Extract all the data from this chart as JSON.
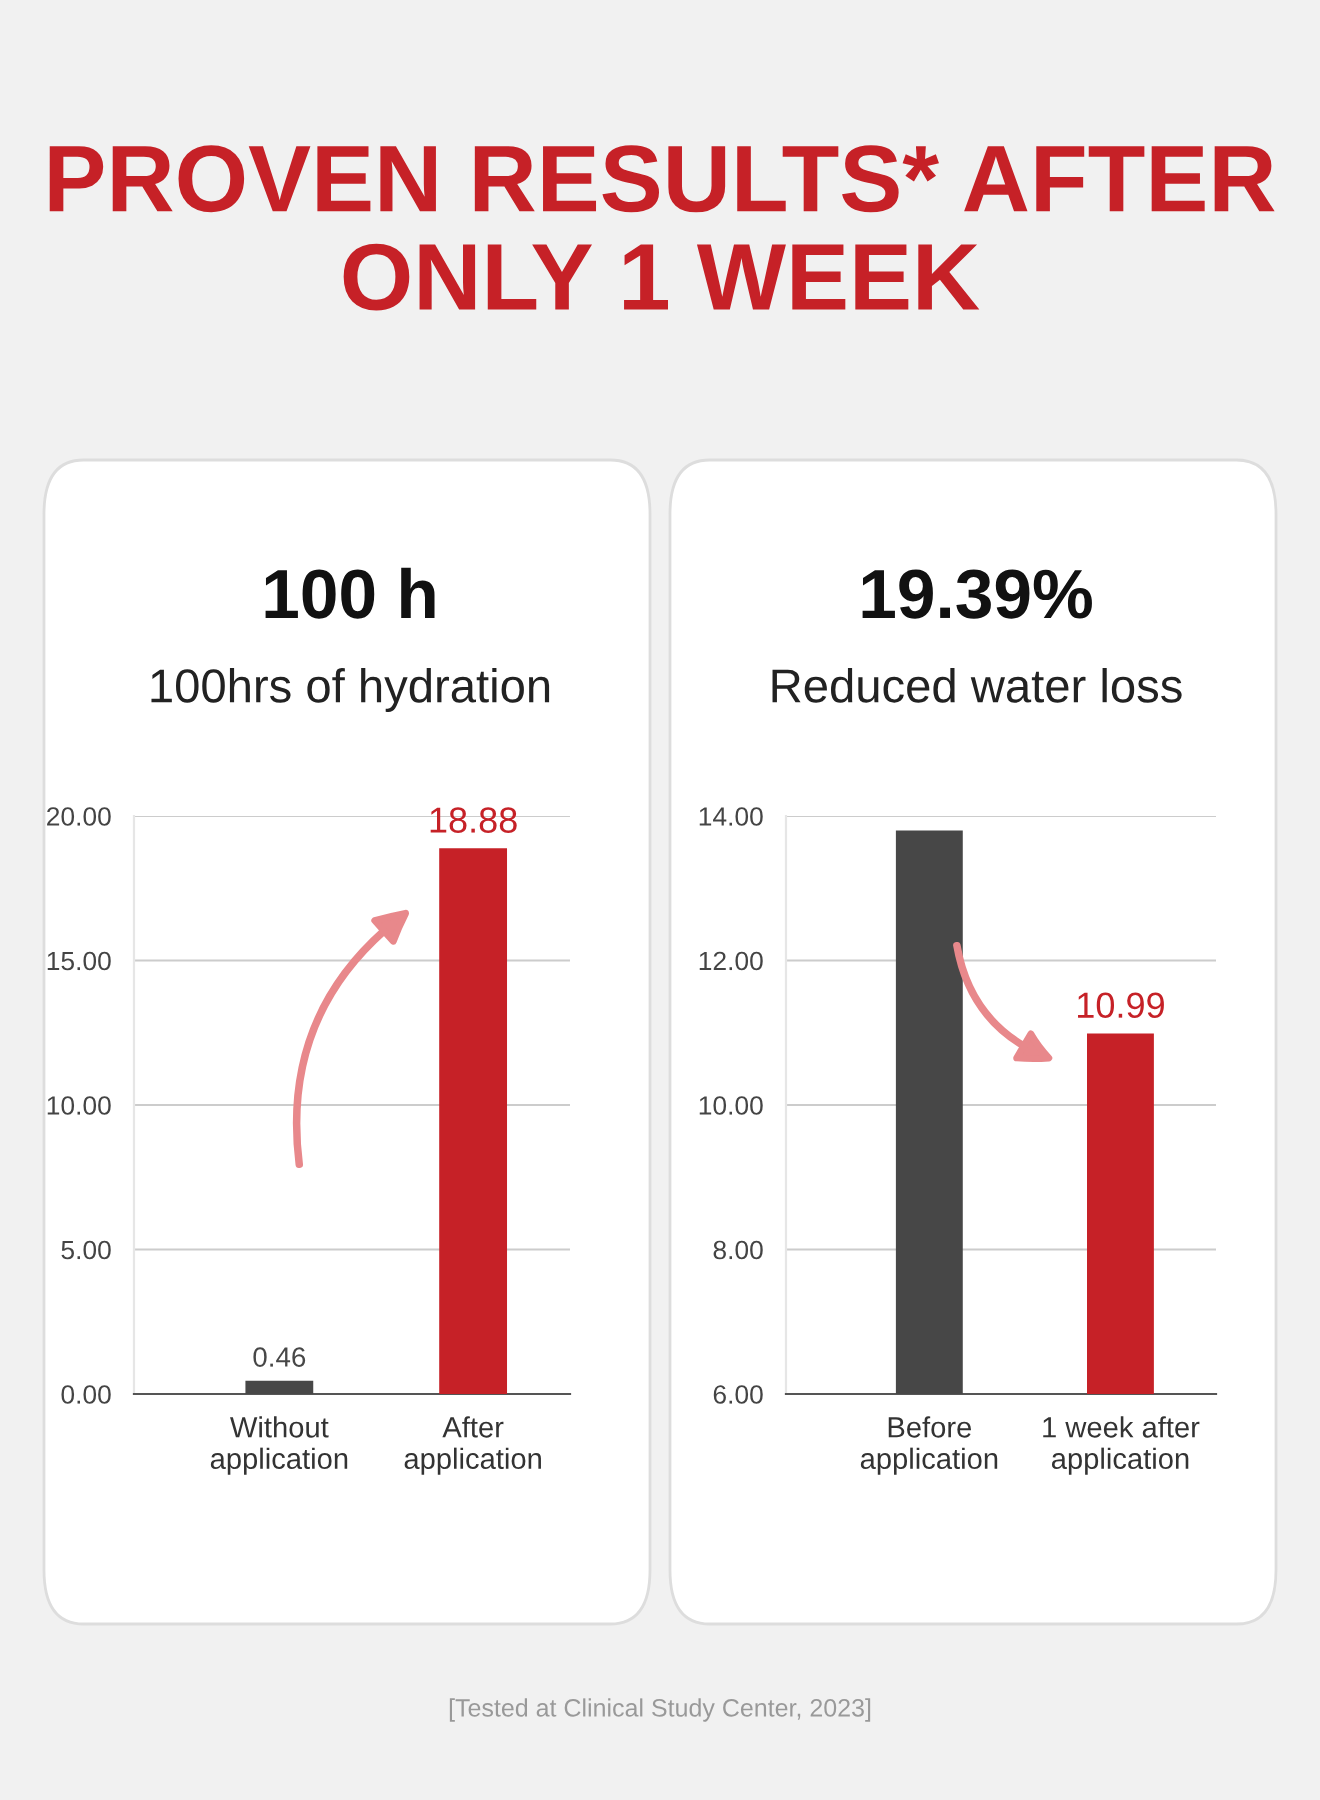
{
  "chart_data": [
    {
      "type": "bar",
      "title": "100 h",
      "subtitle": "100hrs of hydration",
      "categories": [
        "Without\napplication",
        "After\napplication"
      ],
      "values": [
        0.46,
        18.88
      ],
      "colors": [
        "#474747",
        "#c62127"
      ],
      "value_labels": [
        "0.46",
        "18.88"
      ],
      "ylim": [
        0,
        20
      ],
      "yticks": [
        {
          "value": 0,
          "label": "0.00"
        },
        {
          "value": 5,
          "label": "5.00"
        },
        {
          "value": 10,
          "label": "10.00"
        },
        {
          "value": 15,
          "label": "15.00"
        },
        {
          "value": 20,
          "label": "20.00"
        }
      ],
      "grid": "y",
      "legend": false,
      "annotations": [
        "PROVEN RESULTS* AFTER\nONLY 1 WEEK"
      ]
    },
    {
      "type": "bar",
      "title": "19.39%",
      "subtitle": "Reduced water loss",
      "categories": [
        "Before\napplication",
        "1 week after\napplication"
      ],
      "values": [
        13.8,
        10.99
      ],
      "colors": [
        "#474747",
        "#c62127"
      ],
      "value_labels": [
        null,
        "10.99"
      ],
      "ylim": [
        6,
        14
      ],
      "yticks": [
        {
          "value": 6,
          "label": "6.00"
        },
        {
          "value": 8,
          "label": "8.00"
        },
        {
          "value": 10,
          "label": "10.00"
        },
        {
          "value": 12,
          "label": "12.00"
        },
        {
          "value": 14,
          "label": "14.00"
        }
      ],
      "grid": "y",
      "legend": false,
      "annotations": [
        "[Tested at Clinical Study Center, 2023]"
      ]
    }
  ]
}
